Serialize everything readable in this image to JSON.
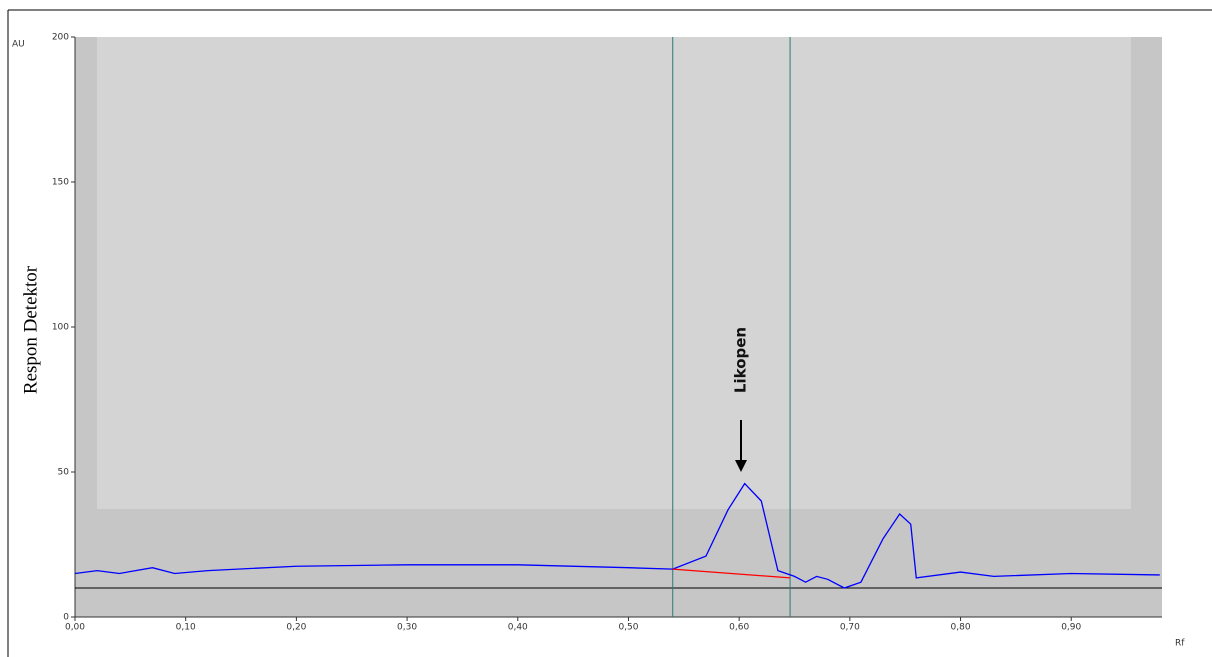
{
  "chart_data": {
    "type": "line",
    "x_label": "Rf",
    "y_unit": "AU",
    "y_label": "Respon Detektor",
    "annotation": "Likopen",
    "xlim": [
      0,
      0.982
    ],
    "ylim": [
      0,
      200
    ],
    "xticks": [
      {
        "value": 0,
        "label": "0,00"
      },
      {
        "value": 0.1,
        "label": "0,10"
      },
      {
        "value": 0.2,
        "label": "0,20"
      },
      {
        "value": 0.3,
        "label": "0,30"
      },
      {
        "value": 0.4,
        "label": "0,40"
      },
      {
        "value": 0.5,
        "label": "0,50"
      },
      {
        "value": 0.6,
        "label": "0,60"
      },
      {
        "value": 0.7,
        "label": "0,70"
      },
      {
        "value": 0.8,
        "label": "0,80"
      },
      {
        "value": 0.9,
        "label": "0,90"
      }
    ],
    "yticks": [
      0,
      50,
      100,
      150,
      200
    ],
    "baseline": 10,
    "peak_bounds": [
      0.54,
      0.646
    ],
    "series": [
      {
        "color": "#0000ff",
        "x": [
          0,
          0.02,
          0.04,
          0.07,
          0.09,
          0.12,
          0.2,
          0.3,
          0.4,
          0.5,
          0.54,
          0.57,
          0.59,
          0.605,
          0.62,
          0.635,
          0.65,
          0.66,
          0.67,
          0.68,
          0.695,
          0.71,
          0.73,
          0.745,
          0.755,
          0.76,
          0.8,
          0.83,
          0.9,
          0.98
        ],
        "values": [
          15,
          16,
          15,
          17,
          15,
          16,
          17.5,
          18,
          18,
          17,
          16.5,
          21,
          37,
          46,
          40,
          16,
          14,
          12,
          14,
          13,
          10,
          12,
          27,
          35.5,
          32,
          13.5,
          15.5,
          14,
          15,
          14.5
        ]
      },
      {
        "color": "#ff0000",
        "x": [
          0.54,
          0.646
        ],
        "values": [
          16.5,
          13.5
        ]
      }
    ]
  }
}
